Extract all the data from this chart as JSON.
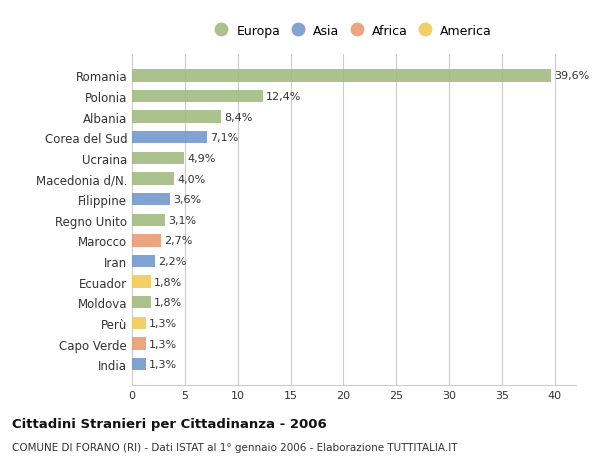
{
  "countries": [
    "Romania",
    "Polonia",
    "Albania",
    "Corea del Sud",
    "Ucraina",
    "Macedonia d/N.",
    "Filippine",
    "Regno Unito",
    "Marocco",
    "Iran",
    "Ecuador",
    "Moldova",
    "Perù",
    "Capo Verde",
    "India"
  ],
  "values": [
    39.6,
    12.4,
    8.4,
    7.1,
    4.9,
    4.0,
    3.6,
    3.1,
    2.7,
    2.2,
    1.8,
    1.8,
    1.3,
    1.3,
    1.3
  ],
  "labels": [
    "39,6%",
    "12,4%",
    "8,4%",
    "7,1%",
    "4,9%",
    "4,0%",
    "3,6%",
    "3,1%",
    "2,7%",
    "2,2%",
    "1,8%",
    "1,8%",
    "1,3%",
    "1,3%",
    "1,3%"
  ],
  "continents": [
    "Europa",
    "Europa",
    "Europa",
    "Asia",
    "Europa",
    "Europa",
    "Asia",
    "Europa",
    "Africa",
    "Asia",
    "America",
    "Europa",
    "America",
    "Africa",
    "Asia"
  ],
  "continent_colors": {
    "Europa": "#9eb87a",
    "Asia": "#6b93c9",
    "Africa": "#e8956a",
    "America": "#f0c84a"
  },
  "legend_order": [
    "Europa",
    "Asia",
    "Africa",
    "America"
  ],
  "title": "Cittadini Stranieri per Cittadinanza - 2006",
  "subtitle": "COMUNE DI FORANO (RI) - Dati ISTAT al 1° gennaio 2006 - Elaborazione TUTTITALIA.IT",
  "xlim": [
    0,
    42
  ],
  "xticks": [
    0,
    5,
    10,
    15,
    20,
    25,
    30,
    35,
    40
  ],
  "bg_color": "#ffffff",
  "grid_color": "#cccccc",
  "bar_height": 0.6
}
